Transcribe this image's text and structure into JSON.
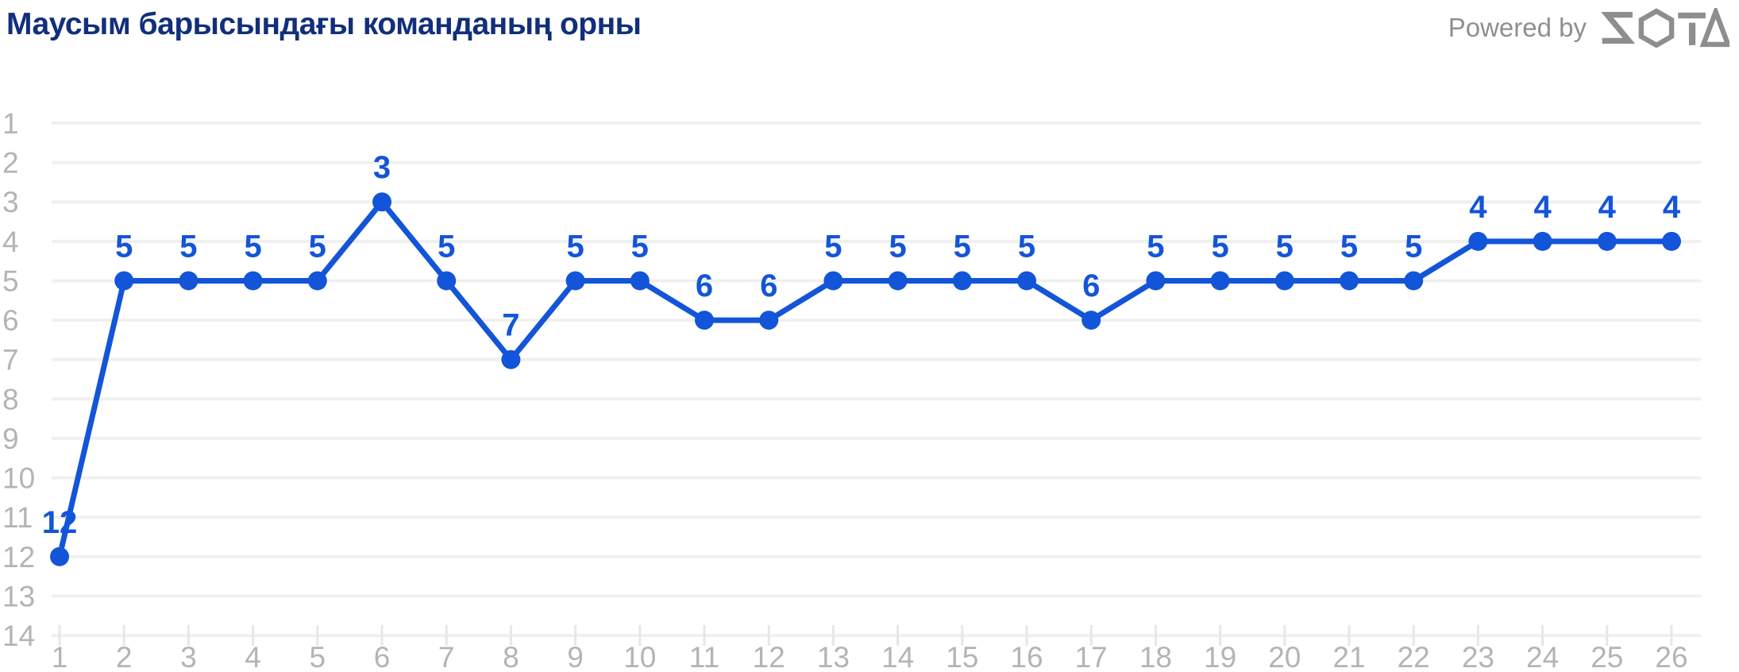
{
  "header": {
    "title": "Маусым барысындағы команданың орны",
    "powered_by_label": "Powered by",
    "logo_name": "sota-logo"
  },
  "colors": {
    "accent_blue": "#1355d8",
    "title_navy": "#112f7b",
    "axis_text_gray": "#b4b4b7",
    "gridline_gray": "#f0f0f0",
    "tick_gray": "#e7e7e9",
    "logo_gray": "#8e8e8e",
    "background": "#ffffff"
  },
  "chart_data": {
    "type": "line",
    "title": "Маусым барысындағы команданың орны",
    "xlabel": "",
    "ylabel": "",
    "x": [
      1,
      2,
      3,
      4,
      5,
      6,
      7,
      8,
      9,
      10,
      11,
      12,
      13,
      14,
      15,
      16,
      17,
      18,
      19,
      20,
      21,
      22,
      23,
      24,
      25,
      26
    ],
    "values": [
      12,
      5,
      5,
      5,
      5,
      3,
      5,
      7,
      5,
      5,
      6,
      6,
      5,
      5,
      5,
      5,
      6,
      5,
      5,
      5,
      5,
      5,
      4,
      4,
      4,
      4
    ],
    "yticks": [
      1,
      2,
      3,
      4,
      5,
      6,
      7,
      8,
      9,
      10,
      11,
      12,
      13,
      14
    ],
    "ylim": [
      14,
      1
    ],
    "y_axis_inverted": true,
    "grid": "horizontal",
    "legend_position": "none",
    "point_labels_visible": true,
    "line_color": "#1355d8",
    "point_color": "#1355d8",
    "label_color": "#1355d8"
  }
}
